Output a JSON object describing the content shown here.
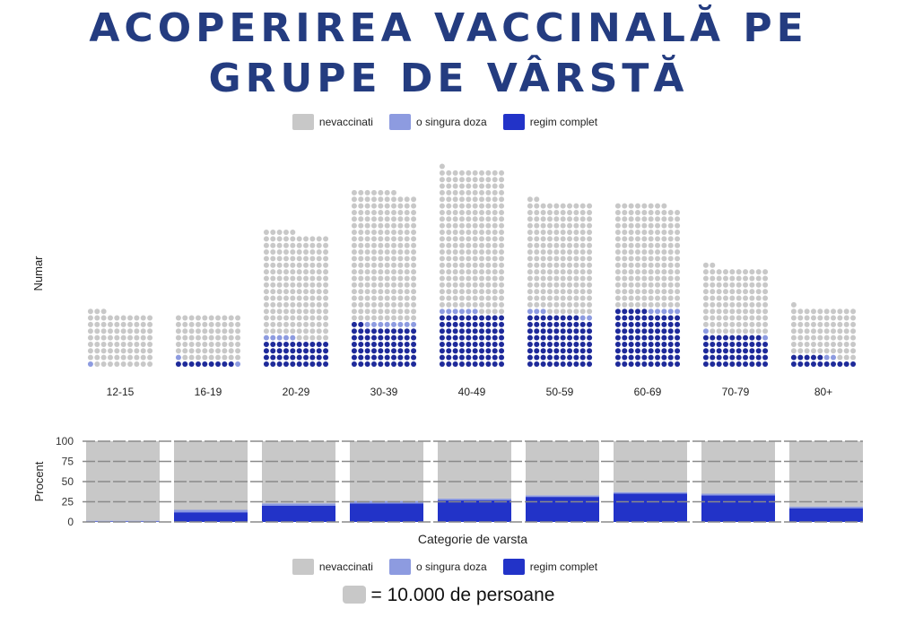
{
  "title": [
    "ACOPERIREA VACCINALĂ PE",
    "GRUPE DE VÂRSTĂ"
  ],
  "legend": [
    {
      "label": "nevaccinati",
      "color": "#c8c8c8"
    },
    {
      "label": "o singura doza",
      "color": "#8d9be0"
    },
    {
      "label": "regim complet",
      "color": "#2233c8"
    }
  ],
  "unit_note": "= 10.000 de persoane",
  "chart_data": [
    {
      "type": "waffle",
      "ylabel": "Numar",
      "unit": "1 dot = 10.000 persoane",
      "categories": [
        "12-15",
        "16-19",
        "20-29",
        "30-39",
        "40-49",
        "50-59",
        "60-69",
        "70-79",
        "80+"
      ],
      "series": [
        {
          "name": "regim complet",
          "values": [
            0,
            9,
            40,
            62,
            80,
            78,
            85,
            49,
            15
          ]
        },
        {
          "name": "o singura doza",
          "values": [
            1,
            2,
            5,
            8,
            6,
            5,
            5,
            2,
            2
          ]
        },
        {
          "name": "nevaccinati",
          "values": [
            82,
            69,
            160,
            197,
            215,
            169,
            158,
            101,
            74
          ]
        }
      ],
      "dot_color_complete": "#1e2a9a"
    },
    {
      "type": "bar",
      "stacked": true,
      "xlabel": "Categorie de varsta",
      "ylabel": "Procent",
      "ylim": [
        0,
        100
      ],
      "yticks": [
        0,
        25,
        50,
        75,
        100
      ],
      "grid": true,
      "categories": [
        "12-15",
        "16-19",
        "20-29",
        "30-39",
        "40-49",
        "50-59",
        "60-69",
        "70-79",
        "80+"
      ],
      "series": [
        {
          "name": "regim complet",
          "values": [
            0.5,
            12,
            20,
            23,
            27,
            31,
            35,
            33,
            17
          ]
        },
        {
          "name": "o singura doza",
          "values": [
            1,
            3,
            3,
            3,
            2,
            2,
            2,
            2,
            2
          ]
        },
        {
          "name": "nevaccinati",
          "values": [
            98.5,
            85,
            77,
            74,
            71,
            67,
            63,
            65,
            81
          ]
        }
      ],
      "legend_position": "bottom"
    }
  ]
}
